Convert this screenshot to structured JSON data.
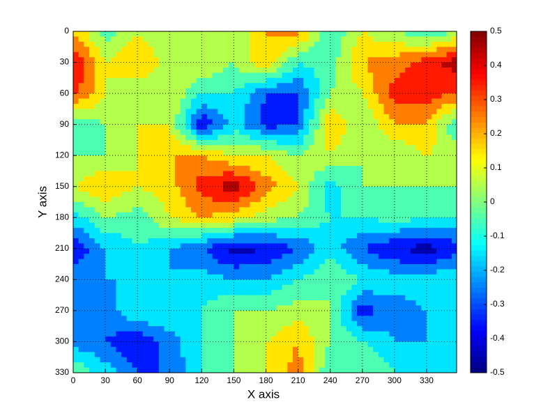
{
  "chart_data": {
    "type": "contour",
    "xlabel": "X axis",
    "ylabel": "Y axis",
    "colormap": "jet",
    "grid": true,
    "ydir": "reverse",
    "x": [
      0,
      30,
      60,
      90,
      120,
      150,
      180,
      210,
      240,
      270,
      300,
      330,
      358
    ],
    "y": [
      0,
      30,
      60,
      90,
      120,
      150,
      180,
      210,
      240,
      270,
      300,
      330
    ],
    "z": [
      [
        0.2,
        -0.05,
        0.1,
        0,
        0,
        0,
        0.2,
        0.25,
        -0.1,
        0.1,
        0,
        -0.1,
        0
      ],
      [
        0.4,
        0.1,
        0.2,
        0.05,
        0.1,
        0,
        0.2,
        -0.1,
        -0.05,
        0.2,
        0.25,
        0.35,
        0.45
      ],
      [
        0.35,
        0.1,
        0,
        0.1,
        -0.1,
        -0.1,
        -0.3,
        -0.3,
        0,
        0.1,
        0.35,
        0.35,
        0.3
      ],
      [
        -0.1,
        0,
        0.1,
        0.1,
        -0.4,
        -0.15,
        -0.35,
        -0.3,
        0.2,
        0,
        0.2,
        0.2,
        -0.1
      ],
      [
        0,
        0,
        0.1,
        0.2,
        0.2,
        0.1,
        0.1,
        0,
        0.1,
        0,
        0,
        0.1,
        0.05
      ],
      [
        0.1,
        0.2,
        0.1,
        0.15,
        0.35,
        0.45,
        0.25,
        0.1,
        -0.15,
        0,
        0,
        0,
        0
      ],
      [
        -0.15,
        0,
        -0.05,
        0.1,
        0.2,
        0.15,
        0.05,
        0,
        -0.1,
        -0.1,
        -0.05,
        -0.1,
        -0.1
      ],
      [
        -0.4,
        -0.2,
        -0.1,
        -0.2,
        -0.3,
        -0.45,
        -0.4,
        -0.3,
        -0.15,
        -0.3,
        -0.4,
        -0.45,
        -0.35
      ],
      [
        -0.2,
        -0.2,
        -0.2,
        -0.2,
        -0.15,
        -0.2,
        -0.2,
        -0.1,
        0,
        -0.1,
        -0.15,
        -0.15,
        -0.1
      ],
      [
        -0.3,
        -0.25,
        -0.1,
        -0.1,
        -0.1,
        0,
        0,
        0.05,
        0,
        -0.35,
        -0.25,
        -0.2,
        -0.15
      ],
      [
        -0.25,
        -0.3,
        -0.4,
        -0.25,
        -0.1,
        0,
        0.1,
        0.2,
        0,
        -0.1,
        -0.2,
        -0.2,
        -0.15
      ],
      [
        0,
        -0.15,
        -0.3,
        -0.3,
        -0.1,
        0,
        0.1,
        0.25,
        -0.1,
        0,
        -0.1,
        -0.2,
        -0.1
      ]
    ],
    "xlim": [
      0,
      358
    ],
    "xticks": [
      0,
      30,
      60,
      90,
      120,
      150,
      180,
      210,
      240,
      270,
      300,
      330
    ],
    "ylim": [
      0,
      330
    ],
    "yticks": [
      0,
      30,
      60,
      90,
      120,
      150,
      180,
      210,
      240,
      270,
      300,
      330
    ],
    "zlim": [
      -0.5,
      0.5
    ],
    "zticks": [
      -0.5,
      -0.4,
      -0.3,
      -0.2,
      -0.1,
      0,
      0.1,
      0.2,
      0.3,
      0.4,
      0.5
    ]
  }
}
